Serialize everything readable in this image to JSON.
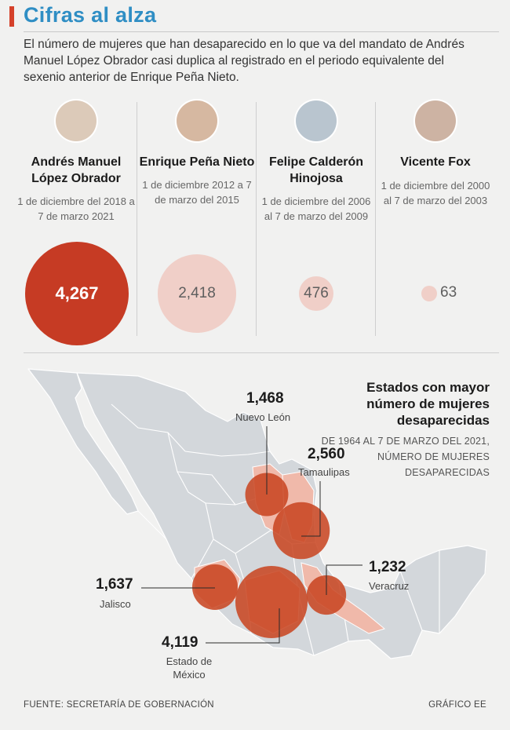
{
  "header": {
    "title": "Cifras al alza",
    "intro": "El número de mujeres que han desaparecido en lo que va del mandato de Andrés Manuel López Obrador casi duplica al registrado en el periodo equivalente del sexenio anterior de Enrique Peña Nieto."
  },
  "chart_data": [
    {
      "type": "bubble",
      "categories": [
        "Andrés Manuel López Obrador",
        "Enrique Peña Nieto",
        "Felipe Calderón Hinojosa",
        "Vicente Fox"
      ],
      "periods": [
        "1 de diciembre del 2018 a 7 de marzo 2021",
        "1 de diciembre 2012 a 7 de marzo del 2015",
        "1 de diciembre del 2006 al 7 de marzo del 2009",
        "1 de diciembre del 2000 al 7 de marzo del 2003"
      ],
      "values": [
        4267,
        2418,
        476,
        63
      ],
      "value_labels": [
        "4,267",
        "2,418",
        "476",
        "63"
      ],
      "colors": [
        "#c63b24",
        "#f0cfc8",
        "#f0cfc8",
        "#f0cfc8"
      ]
    },
    {
      "type": "map-bubble",
      "title": "Estados con mayor número de mujeres desaparecidas",
      "subtitle": "DE 1964 AL 7 DE MARZO DEL 2021, NÚMERO DE MUJERES DESAPARECIDAS",
      "categories": [
        "Nuevo León",
        "Tamaulipas",
        "Jalisco",
        "Estado de México",
        "Veracruz"
      ],
      "values": [
        1468,
        2560,
        1637,
        4119,
        1232
      ],
      "value_labels": [
        "1,468",
        "2,560",
        "1,637",
        "4,119",
        "1,232"
      ],
      "bubble_color": "#c8431f"
    }
  ],
  "footer": {
    "source": "FUENTE: SECRETARÍA DE GOBERNACIÓN",
    "credit": "GRÁFICO EE"
  }
}
